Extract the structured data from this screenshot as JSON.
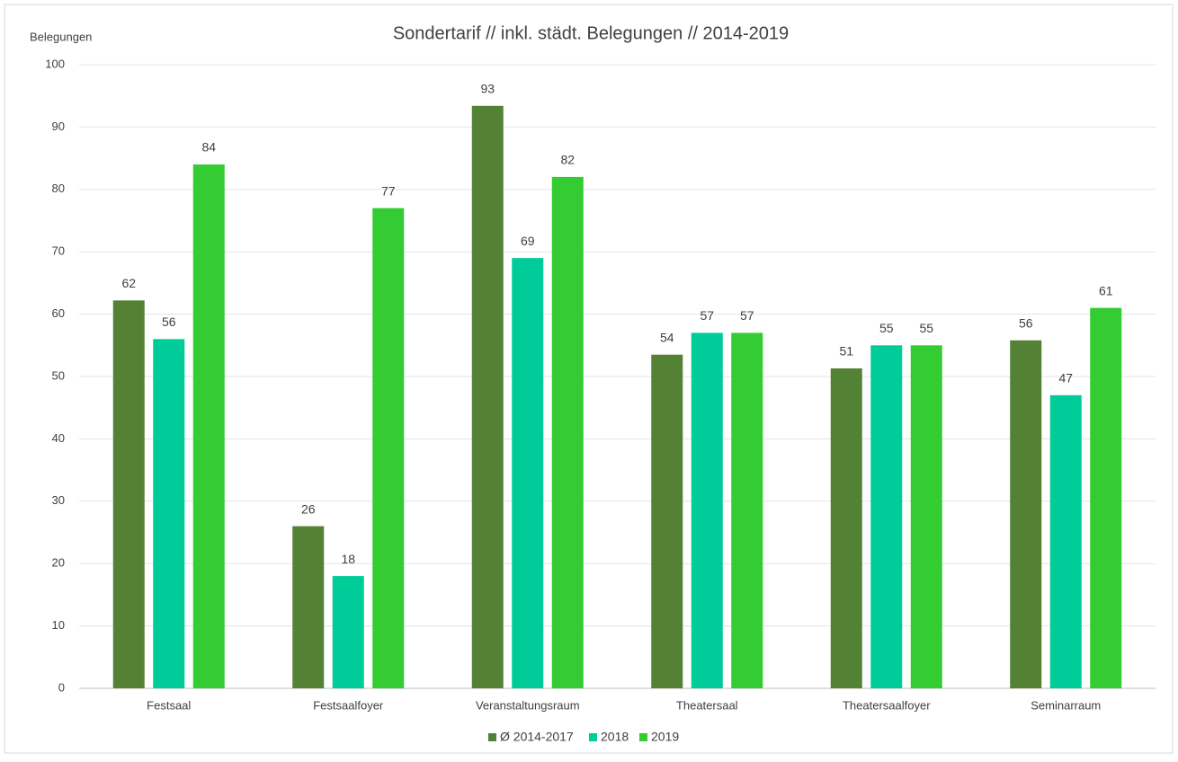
{
  "chart_data": {
    "type": "bar",
    "title": "Sondertarif // inkl. städt. Belegungen // 2014-2019",
    "y_label": "Belegungen",
    "categories": [
      "Festsaal",
      "Festsaalfoyer",
      "Veranstaltungsraum",
      "Theatersaal",
      "Theatersaalfoyer",
      "Seminarraum"
    ],
    "series": [
      {
        "name": "Ø 2014-2017",
        "color": "#548235",
        "values": [
          62.2,
          26,
          93.4,
          53.5,
          51.3,
          55.8
        ],
        "value_labels": [
          "62",
          "26",
          "93",
          "54",
          "51",
          "56"
        ]
      },
      {
        "name": "2018",
        "color": "#00cc99",
        "values": [
          56,
          18,
          69,
          57,
          55,
          47
        ]
      },
      {
        "name": "2019",
        "color": "#33cc33",
        "values": [
          84,
          77,
          82,
          57,
          55,
          61
        ]
      }
    ],
    "ylim": [
      0,
      100
    ],
    "yticks": [
      0,
      10,
      20,
      30,
      40,
      50,
      60,
      70,
      80,
      90,
      100
    ],
    "grid": true,
    "legend": "bottom"
  }
}
